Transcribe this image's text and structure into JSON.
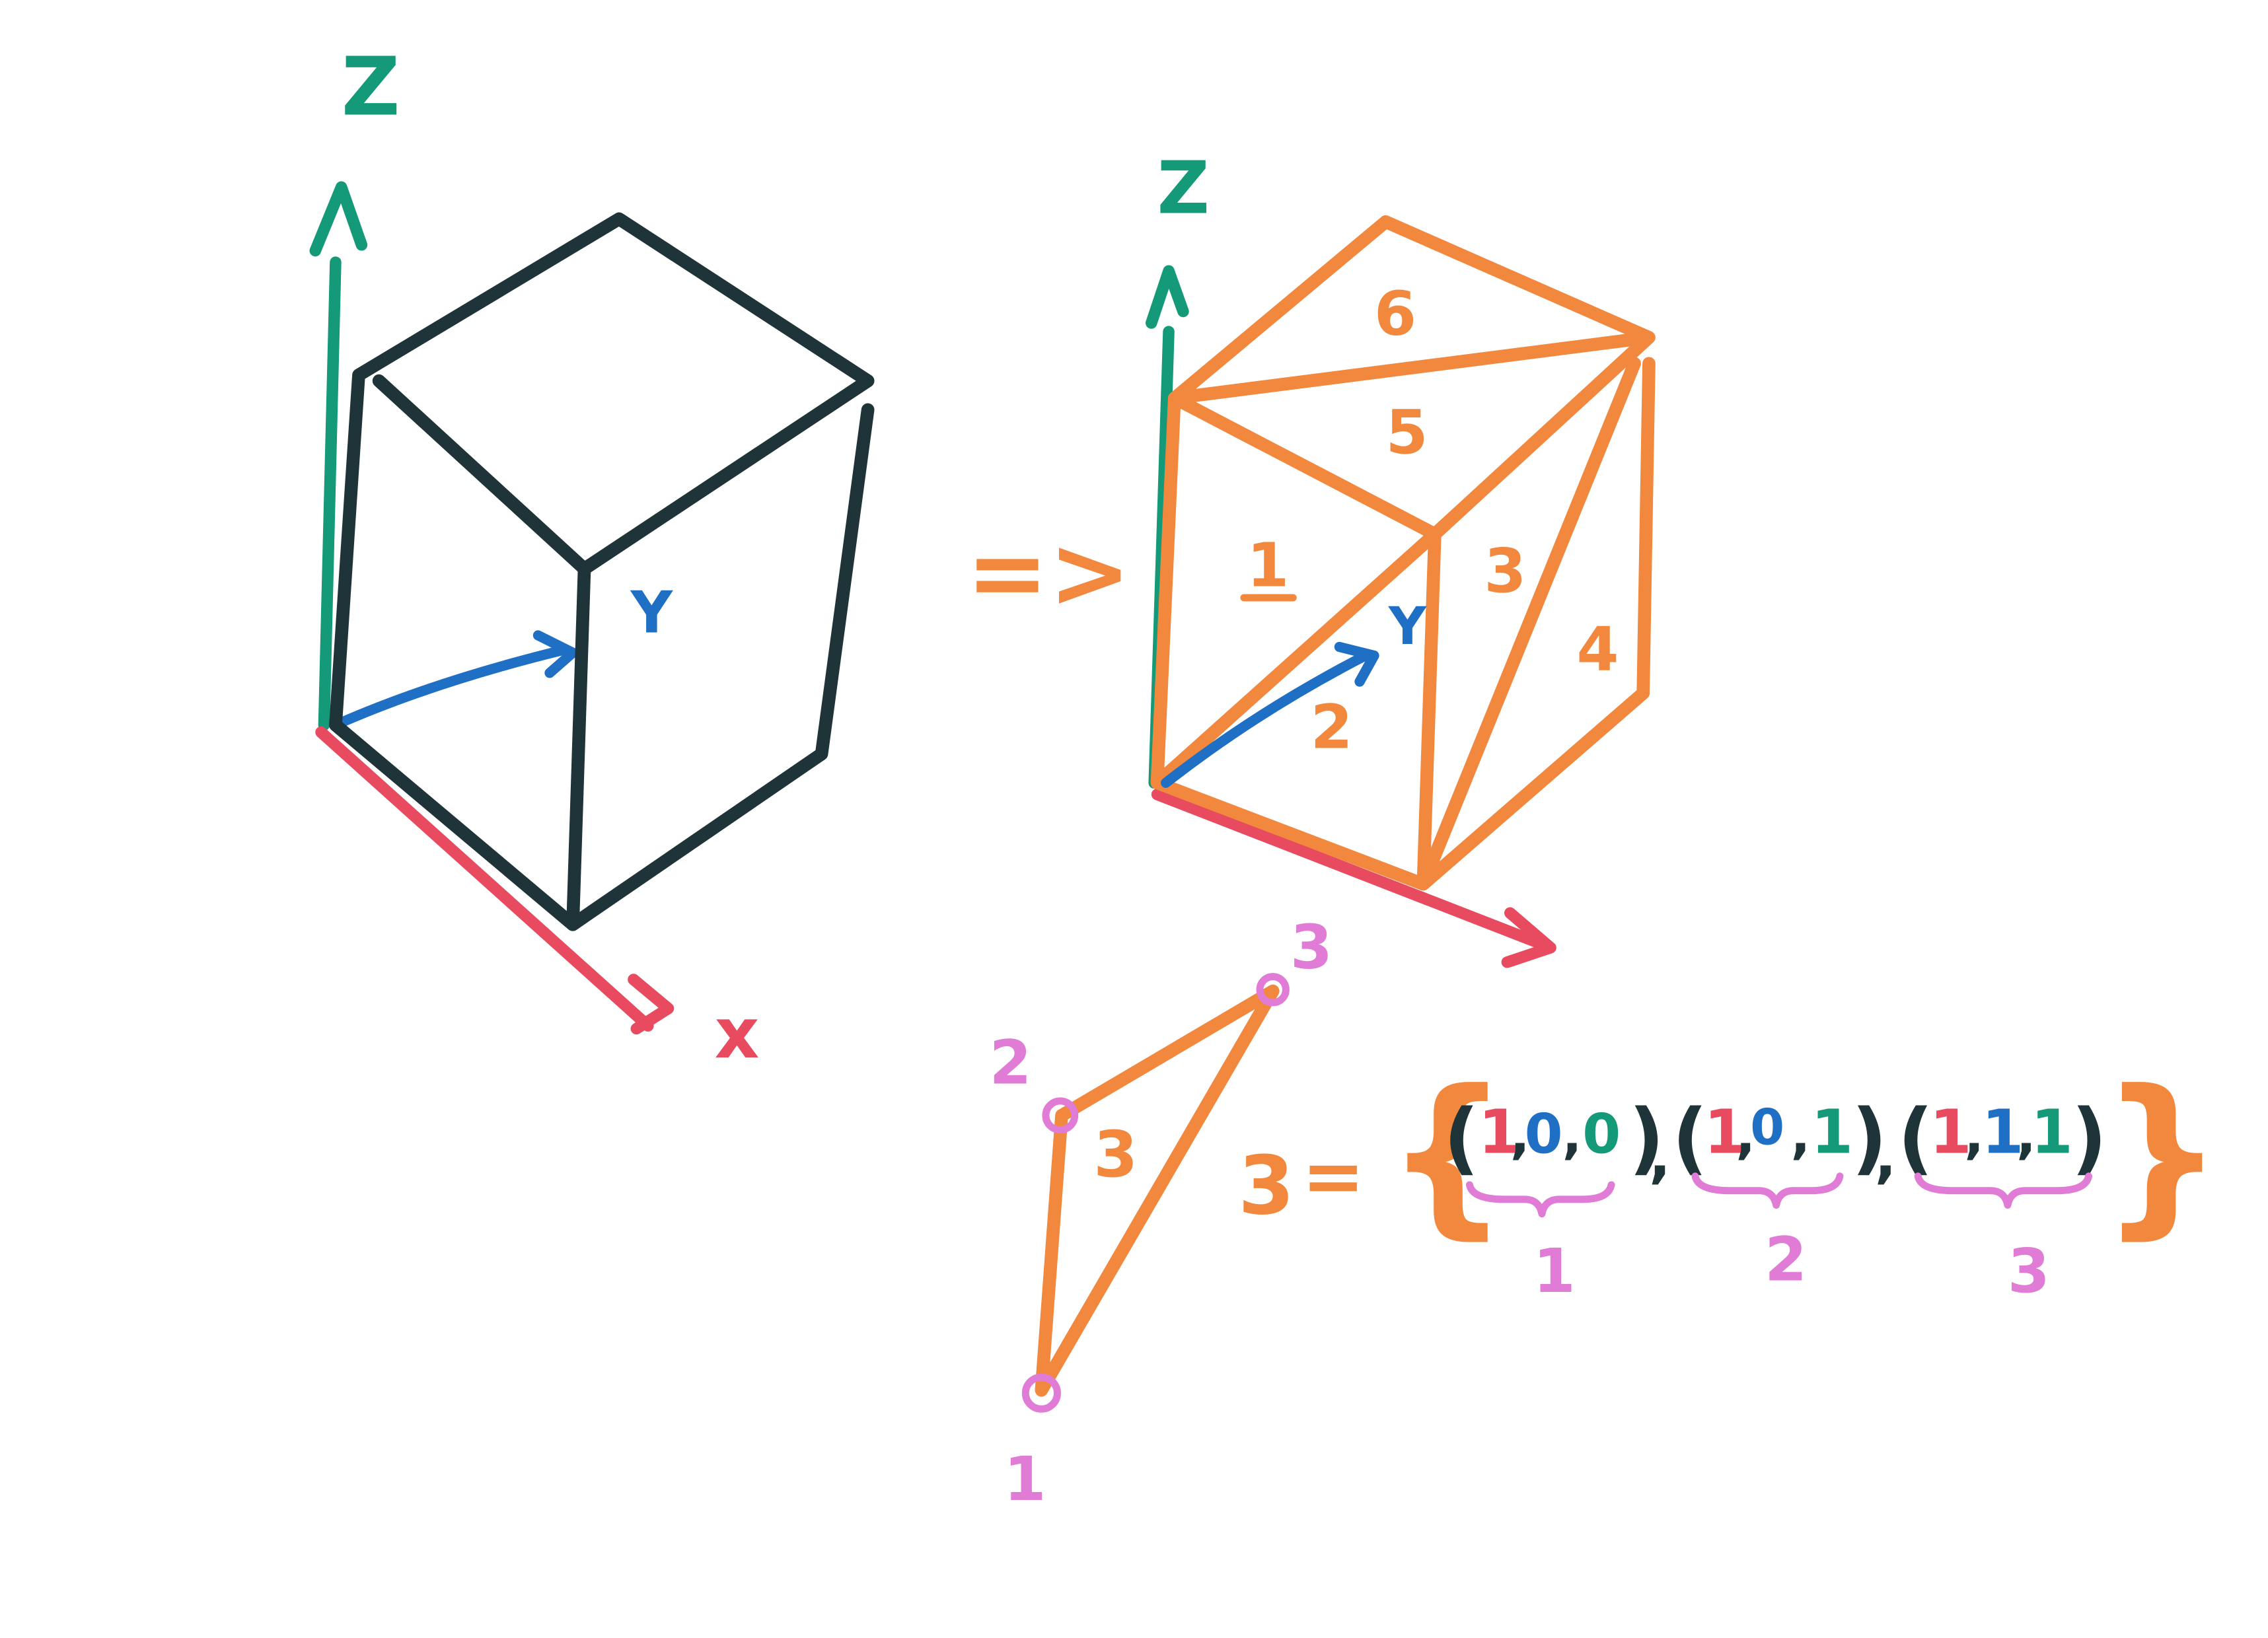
{
  "colors": {
    "paper": "#ffffff",
    "cube_outline": "#1f3438",
    "triangulated_cube": "#f2883e",
    "x_axis": "#e84a5f",
    "y_axis": "#1f6fc4",
    "z_axis": "#149a78",
    "vertex_marker": "#e07bd6"
  },
  "icons": {
    "axis_arrowhead": "arrowhead-icon",
    "implies_arrow": "implies-arrow-icon",
    "vertex_marker": "circle-icon",
    "curly_brace": "curly-brace-icon"
  },
  "axes": {
    "x": "x",
    "y": "Y",
    "z": "Z"
  },
  "implies_symbol": "=>",
  "face_labels": [
    "1",
    "2",
    "3",
    "4",
    "5",
    "6"
  ],
  "triangle": {
    "label": "3",
    "vertex_labels": [
      "1",
      "2",
      "3"
    ]
  },
  "equation": {
    "lhs": "3",
    "equals": "=",
    "open_brace": "{",
    "close_brace": "}",
    "open_paren": "(",
    "close_paren": ")",
    "separator": ",",
    "vertices": [
      {
        "x": "1",
        "y": "0",
        "z": "0",
        "index": "1"
      },
      {
        "x": "1",
        "y": "0",
        "z": "1",
        "index": "2"
      },
      {
        "x": "1",
        "y": "1",
        "z": "1",
        "index": "3"
      }
    ]
  }
}
